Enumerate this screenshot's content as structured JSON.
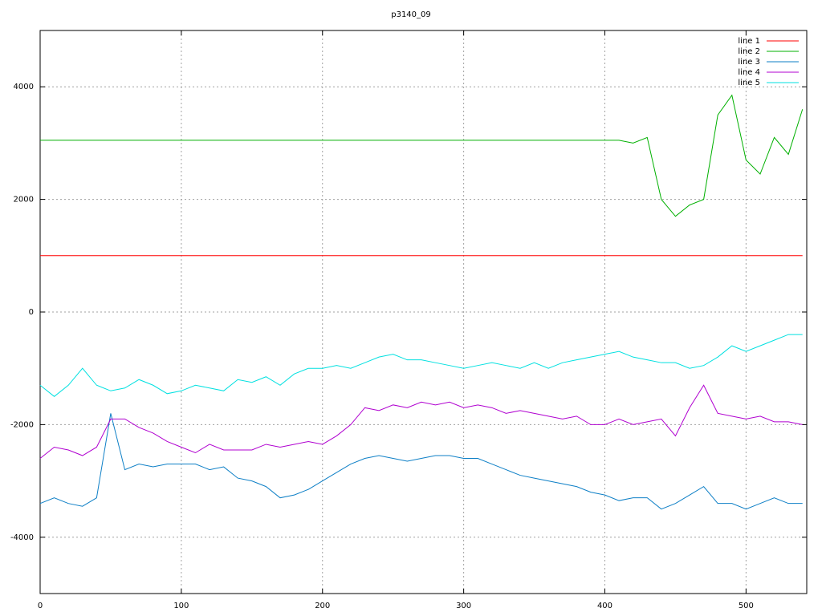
{
  "chart_data": {
    "type": "line",
    "title": "p3140_09",
    "x": [
      0,
      10,
      20,
      30,
      40,
      50,
      60,
      70,
      80,
      90,
      100,
      110,
      120,
      130,
      140,
      150,
      160,
      170,
      180,
      190,
      200,
      210,
      220,
      230,
      240,
      250,
      260,
      270,
      280,
      290,
      300,
      310,
      320,
      330,
      340,
      350,
      360,
      370,
      380,
      390,
      400,
      410,
      420,
      430,
      440,
      450,
      460,
      470,
      480,
      490,
      500,
      510,
      520,
      530,
      540
    ],
    "series": [
      {
        "name": "line 1",
        "color": "#ff0000",
        "values": [
          1000,
          1000,
          1000,
          1000,
          1000,
          1000,
          1000,
          1000,
          1000,
          1000,
          1000,
          1000,
          1000,
          1000,
          1000,
          1000,
          1000,
          1000,
          1000,
          1000,
          1000,
          1000,
          1000,
          1000,
          1000,
          1000,
          1000,
          1000,
          1000,
          1000,
          1000,
          1000,
          1000,
          1000,
          1000,
          1000,
          1000,
          1000,
          1000,
          1000,
          1000,
          1000,
          1000,
          1000,
          1000,
          1000,
          1000,
          1000,
          1000,
          1000,
          1000,
          1000,
          1000,
          1000,
          1000
        ]
      },
      {
        "name": "line 2",
        "color": "#00b000",
        "values": [
          3050,
          3050,
          3050,
          3050,
          3050,
          3050,
          3050,
          3050,
          3050,
          3050,
          3050,
          3050,
          3050,
          3050,
          3050,
          3050,
          3050,
          3050,
          3050,
          3050,
          3050,
          3050,
          3050,
          3050,
          3050,
          3050,
          3050,
          3050,
          3050,
          3050,
          3050,
          3050,
          3050,
          3050,
          3050,
          3050,
          3050,
          3050,
          3050,
          3050,
          3050,
          3050,
          3000,
          3100,
          2000,
          1700,
          1900,
          2000,
          3500,
          3850,
          2700,
          2450,
          3100,
          2800,
          3600
        ]
      },
      {
        "name": "line 3",
        "color": "#0d7fc6",
        "values": [
          -3400,
          -3300,
          -3400,
          -3450,
          -3300,
          -1800,
          -2800,
          -2700,
          -2750,
          -2700,
          -2700,
          -2700,
          -2800,
          -2750,
          -2950,
          -3000,
          -3100,
          -3300,
          -3250,
          -3150,
          -3000,
          -2850,
          -2700,
          -2600,
          -2550,
          -2600,
          -2650,
          -2600,
          -2550,
          -2550,
          -2600,
          -2600,
          -2700,
          -2800,
          -2900,
          -2950,
          -3000,
          -3050,
          -3100,
          -3200,
          -3250,
          -3350,
          -3300,
          -3300,
          -3500,
          -3400,
          -3250,
          -3100,
          -3400,
          -3400,
          -3500,
          -3400,
          -3300,
          -3400,
          -3400
        ]
      },
      {
        "name": "line 4",
        "color": "#b000d0",
        "values": [
          -2600,
          -2400,
          -2450,
          -2550,
          -2400,
          -1900,
          -1900,
          -2050,
          -2150,
          -2300,
          -2400,
          -2500,
          -2350,
          -2450,
          -2450,
          -2450,
          -2350,
          -2400,
          -2350,
          -2300,
          -2350,
          -2200,
          -2000,
          -1700,
          -1750,
          -1650,
          -1700,
          -1600,
          -1650,
          -1600,
          -1700,
          -1650,
          -1700,
          -1800,
          -1750,
          -1800,
          -1850,
          -1900,
          -1850,
          -2000,
          -2000,
          -1900,
          -2000,
          -1950,
          -1900,
          -2200,
          -1700,
          -1300,
          -1800,
          -1850,
          -1900,
          -1850,
          -1950,
          -1950,
          -2000
        ]
      },
      {
        "name": "line 5",
        "color": "#00e0e0",
        "values": [
          -1300,
          -1500,
          -1300,
          -1000,
          -1300,
          -1400,
          -1350,
          -1200,
          -1300,
          -1450,
          -1400,
          -1300,
          -1350,
          -1400,
          -1200,
          -1250,
          -1150,
          -1300,
          -1100,
          -1000,
          -1000,
          -950,
          -1000,
          -900,
          -800,
          -750,
          -850,
          -850,
          -900,
          -950,
          -1000,
          -950,
          -900,
          -950,
          -1000,
          -900,
          -1000,
          -900,
          -850,
          -800,
          -750,
          -700,
          -800,
          -850,
          -900,
          -900,
          -1000,
          -950,
          -800,
          -600,
          -700,
          -600,
          -500,
          -400,
          -400
        ]
      }
    ],
    "xlim": [
      0,
      543
    ],
    "xticks": [
      0,
      100,
      200,
      300,
      400,
      500
    ],
    "ylim": [
      -5000,
      5000
    ],
    "yticks": [
      -4000,
      -2000,
      0,
      2000,
      4000
    ],
    "grid": true,
    "legend": "top-right"
  }
}
